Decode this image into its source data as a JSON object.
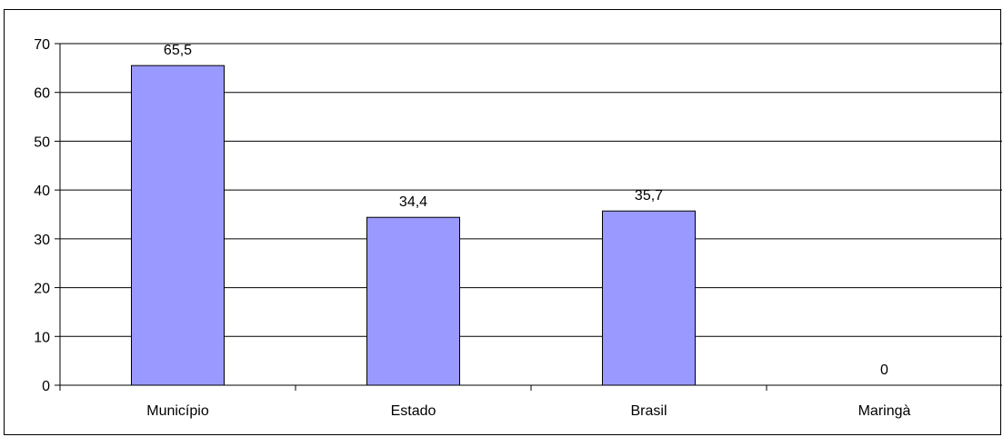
{
  "chart_data": {
    "type": "bar",
    "categories": [
      "Município",
      "Estado",
      "Brasil",
      "Maringà"
    ],
    "values": [
      65.5,
      34.4,
      35.7,
      0
    ],
    "value_labels": [
      "65,5",
      "34,4",
      "35,7",
      "0"
    ],
    "title": "",
    "xlabel": "",
    "ylabel": "",
    "ylim": [
      0,
      70
    ],
    "yticks": [
      0,
      10,
      20,
      30,
      40,
      50,
      60,
      70
    ],
    "ytick_labels": [
      "0",
      "10",
      "20",
      "30",
      "40",
      "50",
      "60",
      "70"
    ],
    "grid": true,
    "legend": "none",
    "colors": {
      "bar_fill": "#9999FF",
      "bar_stroke": "#000000",
      "grid": "#000000",
      "background": "#FFFFFF"
    }
  }
}
